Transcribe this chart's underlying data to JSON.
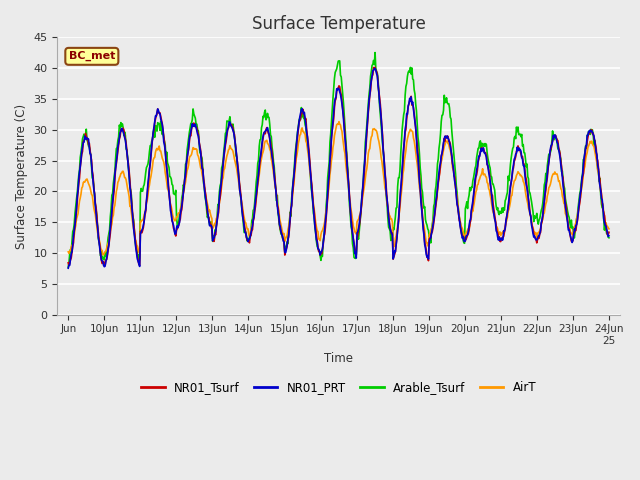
{
  "title": "Surface Temperature",
  "ylabel": "Surface Temperature (C)",
  "xlabel": "Time",
  "annotation": "BC_met",
  "ylim": [
    0,
    45
  ],
  "bg_color": "#ebebeb",
  "series_colors": {
    "NR01_Tsurf": "#cc0000",
    "NR01_PRT": "#0000cc",
    "Arable_Tsurf": "#00cc00",
    "AirT": "#ff9900"
  },
  "line_width": 1.2,
  "day_peaks_base": [
    29,
    30,
    33,
    31,
    31,
    30,
    33,
    37,
    40,
    35,
    29,
    27,
    27,
    29,
    30
  ],
  "day_troughs_base": [
    8,
    8,
    13,
    14,
    12,
    12,
    10,
    10,
    13,
    9,
    12,
    12,
    12,
    12,
    13
  ],
  "day_peaks_green": [
    29,
    31,
    31,
    32,
    32,
    33,
    33,
    41,
    41,
    40,
    35,
    28,
    30,
    29,
    30
  ],
  "day_troughs_green": [
    9,
    9,
    20,
    14,
    12,
    12,
    10,
    9,
    12,
    14,
    12,
    17,
    16,
    14,
    13
  ],
  "day_peaks_air": [
    22,
    23,
    27,
    27,
    27,
    28,
    30,
    31,
    30,
    30,
    28,
    23,
    23,
    23,
    28
  ],
  "day_troughs_air": [
    10,
    10,
    15,
    16,
    14,
    13,
    12,
    13,
    15,
    11,
    13,
    13,
    13,
    13,
    14
  ],
  "tick_labels": [
    "Jun",
    "10Jun",
    "11Jun",
    "12Jun",
    "13Jun",
    "14Jun",
    "15Jun",
    "16Jun",
    "17Jun",
    "18Jun",
    "19Jun",
    "20Jun",
    "21Jun",
    "22Jun",
    "23Jun",
    "24Jun\n25"
  ]
}
